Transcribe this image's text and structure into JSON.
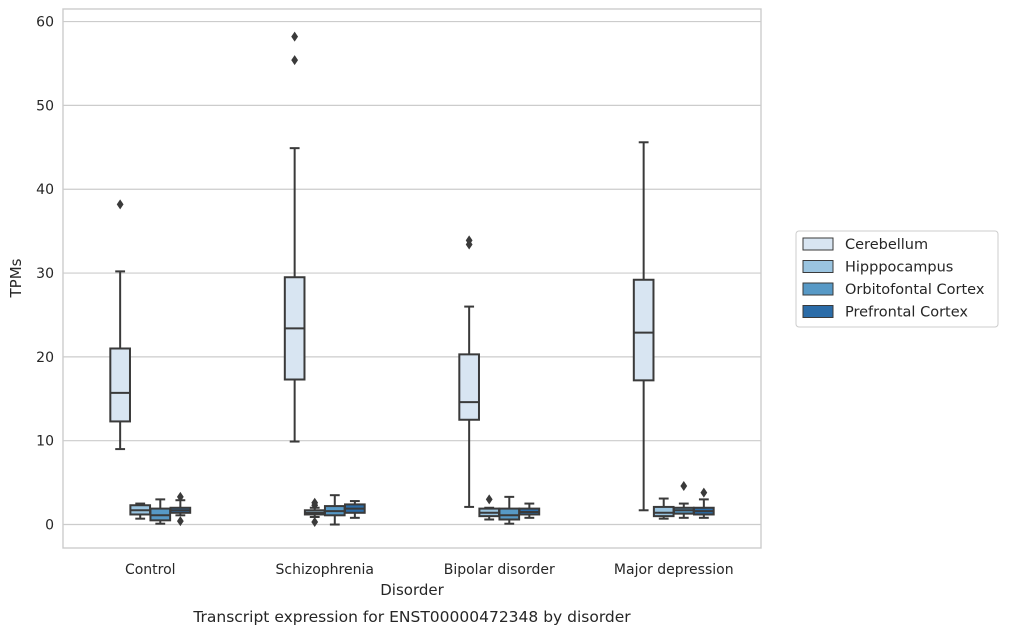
{
  "chart_data": {
    "type": "box",
    "title": "",
    "caption": "Transcript expression for ENST00000472348 by disorder",
    "xlabel": "Disorder",
    "ylabel": "TPMs",
    "ylim": [
      -2.8,
      61.5
    ],
    "yticks": [
      0,
      10,
      20,
      30,
      40,
      50,
      60
    ],
    "grid": "horizontal",
    "legend_position": "right",
    "categories": [
      "Control",
      "Schizophrenia",
      "Bipolar disorder",
      "Major depression"
    ],
    "series": [
      {
        "name": "Cerebellum",
        "color": "#d8e5f2",
        "boxes": [
          {
            "whislo": 9.0,
            "q1": 12.3,
            "med": 15.7,
            "q3": 21.0,
            "whishi": 30.2,
            "fliers": [
              38.2
            ]
          },
          {
            "whislo": 9.9,
            "q1": 17.3,
            "med": 23.4,
            "q3": 29.5,
            "whishi": 44.9,
            "fliers": [
              55.4,
              58.2
            ]
          },
          {
            "whislo": 2.1,
            "q1": 12.5,
            "med": 14.6,
            "q3": 20.3,
            "whishi": 26.0,
            "fliers": [
              33.4,
              33.9
            ]
          },
          {
            "whislo": 1.7,
            "q1": 17.2,
            "med": 22.9,
            "q3": 29.2,
            "whishi": 45.6,
            "fliers": []
          }
        ]
      },
      {
        "name": "Hipppocampus",
        "color": "#9ac4e0",
        "boxes": [
          {
            "whislo": 0.7,
            "q1": 1.2,
            "med": 1.7,
            "q3": 2.3,
            "whishi": 2.5,
            "fliers": []
          },
          {
            "whislo": 0.9,
            "q1": 1.2,
            "med": 1.4,
            "q3": 1.7,
            "whishi": 2.0,
            "fliers": [
              0.3,
              2.3,
              2.6
            ]
          },
          {
            "whislo": 0.6,
            "q1": 1.0,
            "med": 1.4,
            "q3": 1.9,
            "whishi": 2.0,
            "fliers": [
              3.0
            ]
          },
          {
            "whislo": 0.7,
            "q1": 1.0,
            "med": 1.4,
            "q3": 2.1,
            "whishi": 3.1,
            "fliers": []
          }
        ]
      },
      {
        "name": "Orbitofontal Cortex",
        "color": "#5799c6",
        "boxes": [
          {
            "whislo": 0.1,
            "q1": 0.5,
            "med": 1.1,
            "q3": 1.9,
            "whishi": 3.0,
            "fliers": []
          },
          {
            "whislo": 0.0,
            "q1": 1.1,
            "med": 1.6,
            "q3": 2.2,
            "whishi": 3.5,
            "fliers": []
          },
          {
            "whislo": 0.1,
            "q1": 0.6,
            "med": 1.1,
            "q3": 1.9,
            "whishi": 3.3,
            "fliers": []
          },
          {
            "whislo": 0.8,
            "q1": 1.3,
            "med": 1.7,
            "q3": 2.0,
            "whishi": 2.5,
            "fliers": [
              4.6
            ]
          }
        ]
      },
      {
        "name": "Prefrontal Cortex",
        "color": "#2b6ca8",
        "boxes": [
          {
            "whislo": 1.1,
            "q1": 1.4,
            "med": 1.7,
            "q3": 2.0,
            "whishi": 2.9,
            "fliers": [
              0.4,
              3.3
            ]
          },
          {
            "whislo": 0.8,
            "q1": 1.4,
            "med": 1.9,
            "q3": 2.4,
            "whishi": 2.8,
            "fliers": []
          },
          {
            "whislo": 0.8,
            "q1": 1.2,
            "med": 1.5,
            "q3": 1.9,
            "whishi": 2.5,
            "fliers": []
          },
          {
            "whislo": 0.8,
            "q1": 1.2,
            "med": 1.6,
            "q3": 2.0,
            "whishi": 3.0,
            "fliers": [
              3.8
            ]
          }
        ]
      }
    ]
  }
}
